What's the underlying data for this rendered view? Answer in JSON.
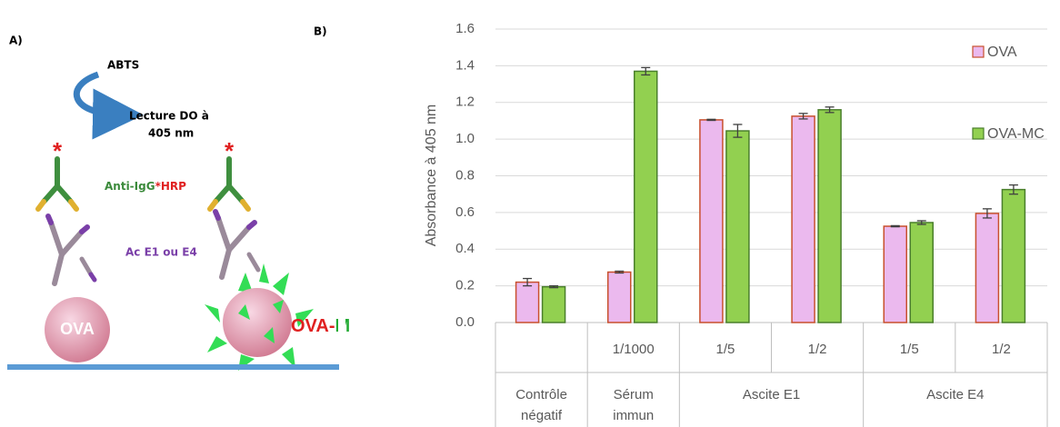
{
  "diagram": {
    "panel_a": "A)",
    "panel_b": "B)",
    "substrate": "ABTS",
    "reading_line1": "Lecture DO à",
    "reading_line2": "405 nm",
    "conjugate": "Anti-IgG",
    "conjugate_enzyme": "*HRP",
    "antibody": "Ac E1 ou E4",
    "antigen_left": "OVA",
    "antigen_right_prefix": "OVA-",
    "antigen_right_suffix": "M"
  },
  "chart_data": {
    "type": "bar",
    "y_label": "Absorbance à 405 nm",
    "categories": [
      null,
      "1/1000",
      "1/5",
      "1/2",
      "1/5",
      "1/2"
    ],
    "category_groups": [
      "Contrôle négatif",
      "Sérum immun",
      "Ascite E1",
      null,
      "Ascite E4",
      null
    ],
    "series": [
      {
        "name": "OVA",
        "color": "#ebb9ee",
        "edgecolor": "#c8502d",
        "values": [
          0.22,
          0.275,
          1.105,
          1.125,
          0.525,
          0.595
        ],
        "errors": [
          0.02,
          0.005,
          0.003,
          0.015,
          0.003,
          0.025
        ]
      },
      {
        "name": "OVA-MC",
        "color": "#92d050",
        "edgecolor": "#4a7f2c",
        "values": [
          0.195,
          1.37,
          1.045,
          1.16,
          0.545,
          0.725
        ],
        "errors": [
          0.005,
          0.02,
          0.035,
          0.015,
          0.01,
          0.025
        ]
      }
    ],
    "ylim": [
      0,
      1.6
    ],
    "yticks": [
      {
        "value": 0,
        "label": "0.0"
      },
      0.2,
      0.4,
      0.6,
      0.8,
      {
        "value": 1,
        "label": "1.0"
      },
      1.2,
      1.4,
      1.6
    ],
    "grid": true,
    "legend": "right"
  }
}
